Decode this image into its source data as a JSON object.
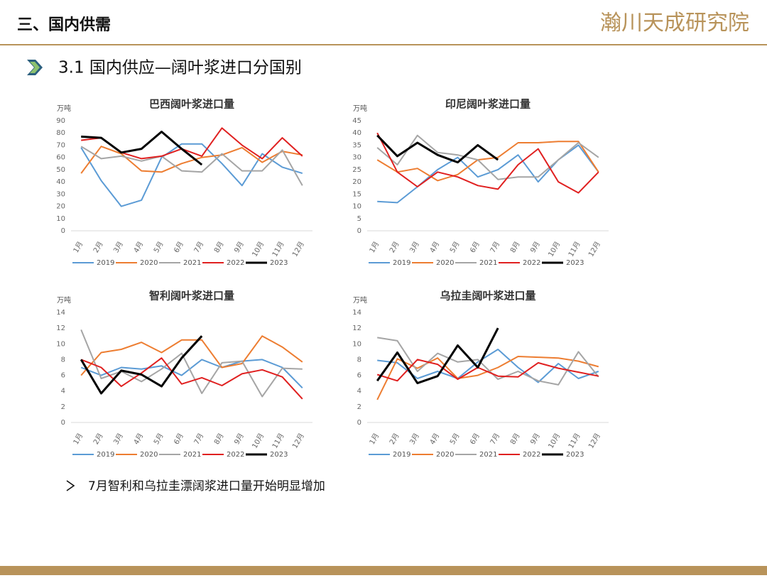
{
  "header": {
    "section": "三、国内供需",
    "logo": "瀚川天成研究院",
    "subtitle": "3.1 国内供应—阔叶浆进口分国别"
  },
  "note": "7月智利和乌拉圭漂阔浆进口量开始明显增加",
  "chart_data": [
    {
      "type": "line",
      "title": "巴西阔叶浆进口量",
      "y_unit": "万吨",
      "categories": [
        "1月",
        "2月",
        "3月",
        "4月",
        "5月",
        "6月",
        "7月",
        "8月",
        "9月",
        "10月",
        "11月",
        "12月"
      ],
      "ylim": [
        0,
        90
      ],
      "yticks": [
        0,
        10,
        20,
        30,
        40,
        50,
        60,
        70,
        80,
        90
      ],
      "series": [
        {
          "name": "2019",
          "color": "#5b9bd5",
          "values": [
            68,
            41,
            20,
            25,
            60,
            71,
            71,
            55,
            37,
            63,
            52,
            47
          ]
        },
        {
          "name": "2020",
          "color": "#ed7d31",
          "values": [
            47,
            69,
            63,
            49,
            48,
            55,
            60,
            62,
            68,
            56,
            65,
            62
          ]
        },
        {
          "name": "2021",
          "color": "#a5a5a5",
          "values": [
            69,
            59,
            61,
            57,
            61,
            49,
            48,
            63,
            49,
            49,
            66,
            37
          ]
        },
        {
          "name": "2022",
          "color": "#e02020",
          "values": [
            74,
            76,
            64,
            59,
            61,
            67,
            61,
            84,
            70,
            59,
            76,
            61
          ]
        },
        {
          "name": "2023",
          "color": "#000000",
          "values": [
            77,
            76,
            64,
            67,
            81,
            67,
            54,
            null,
            null,
            null,
            null,
            null
          ]
        }
      ]
    },
    {
      "type": "line",
      "title": "印尼阔叶浆进口量",
      "y_unit": "万吨",
      "categories": [
        "1月",
        "2月",
        "3月",
        "4月",
        "5月",
        "6月",
        "7月",
        "8月",
        "9月",
        "10月",
        "11月",
        "12月"
      ],
      "ylim": [
        0,
        45
      ],
      "yticks": [
        0,
        5,
        10,
        15,
        20,
        25,
        30,
        35,
        40,
        45
      ],
      "series": [
        {
          "name": "2019",
          "color": "#5b9bd5",
          "values": [
            12,
            11.5,
            18,
            25,
            30,
            22,
            25,
            31,
            20,
            29,
            35,
            24
          ]
        },
        {
          "name": "2020",
          "color": "#ed7d31",
          "values": [
            29,
            24,
            25.5,
            20.5,
            23,
            29,
            30,
            36,
            36,
            36.5,
            36.5,
            24
          ]
        },
        {
          "name": "2021",
          "color": "#a5a5a5",
          "values": [
            34,
            27,
            39,
            32,
            31,
            29,
            21,
            22,
            22,
            29,
            36,
            30
          ]
        },
        {
          "name": "2022",
          "color": "#e02020",
          "values": [
            40,
            24,
            18,
            24,
            22,
            18.5,
            17,
            27,
            33.5,
            20,
            15.5,
            24
          ]
        },
        {
          "name": "2023",
          "color": "#000000",
          "values": [
            39,
            30.5,
            36,
            31,
            28,
            35,
            29,
            null,
            null,
            null,
            null,
            null
          ]
        }
      ]
    },
    {
      "type": "line",
      "title": "智利阔叶浆进口量",
      "y_unit": "万吨",
      "categories": [
        "1月",
        "2月",
        "3月",
        "4月",
        "5月",
        "6月",
        "7月",
        "8月",
        "9月",
        "10月",
        "11月",
        "12月"
      ],
      "ylim": [
        0,
        14
      ],
      "yticks": [
        0,
        2,
        4,
        6,
        8,
        10,
        12,
        14
      ],
      "series": [
        {
          "name": "2019",
          "color": "#5b9bd5",
          "values": [
            7,
            6,
            7,
            6.8,
            7.2,
            6,
            8,
            7,
            7.8,
            8,
            7,
            4.4
          ]
        },
        {
          "name": "2020",
          "color": "#ed7d31",
          "values": [
            6,
            8.9,
            9.3,
            10.2,
            8.9,
            10.5,
            10.5,
            7,
            7.5,
            11,
            9.6,
            7.7
          ]
        },
        {
          "name": "2021",
          "color": "#a5a5a5",
          "values": [
            11.8,
            5.6,
            6.5,
            5.2,
            6.8,
            8.8,
            3.7,
            7.6,
            7.8,
            3.3,
            6.9,
            6.8
          ]
        },
        {
          "name": "2022",
          "color": "#e02020",
          "values": [
            8,
            7,
            4.6,
            6.3,
            8.2,
            4.9,
            5.7,
            4.7,
            6.2,
            6.7,
            5.8,
            3
          ]
        },
        {
          "name": "2023",
          "color": "#000000",
          "values": [
            8,
            3.7,
            6.6,
            6.1,
            4.6,
            8.2,
            11,
            null,
            null,
            null,
            null,
            null
          ]
        }
      ]
    },
    {
      "type": "line",
      "title": "乌拉圭阔叶浆进口量",
      "y_unit": "万吨",
      "categories": [
        "1月",
        "2月",
        "3月",
        "4月",
        "5月",
        "6月",
        "7月",
        "8月",
        "9月",
        "10月",
        "11月",
        "12月"
      ],
      "ylim": [
        0,
        14
      ],
      "yticks": [
        0,
        2,
        4,
        6,
        8,
        10,
        12,
        14
      ],
      "series": [
        {
          "name": "2019",
          "color": "#5b9bd5",
          "values": [
            7.9,
            7.6,
            5.6,
            6.5,
            5.6,
            7.7,
            9.3,
            7,
            5.1,
            7.5,
            5.6,
            6.5
          ]
        },
        {
          "name": "2020",
          "color": "#ed7d31",
          "values": [
            2.9,
            8.1,
            6.9,
            8.2,
            5.6,
            6,
            7,
            8.4,
            8.3,
            8.2,
            7.8,
            7.1
          ]
        },
        {
          "name": "2021",
          "color": "#a5a5a5",
          "values": [
            10.8,
            10.4,
            6.5,
            8.8,
            7.7,
            8,
            5.5,
            6.5,
            5.3,
            4.8,
            9,
            5.8
          ]
        },
        {
          "name": "2022",
          "color": "#e02020",
          "values": [
            6.1,
            5.3,
            8,
            7.4,
            5.5,
            7,
            5.9,
            5.8,
            7.6,
            6.9,
            6.4,
            5.9
          ]
        },
        {
          "name": "2023",
          "color": "#000000",
          "values": [
            5.3,
            8.9,
            5,
            5.9,
            9.8,
            7,
            12,
            null,
            null,
            null,
            null,
            null
          ]
        }
      ]
    }
  ]
}
